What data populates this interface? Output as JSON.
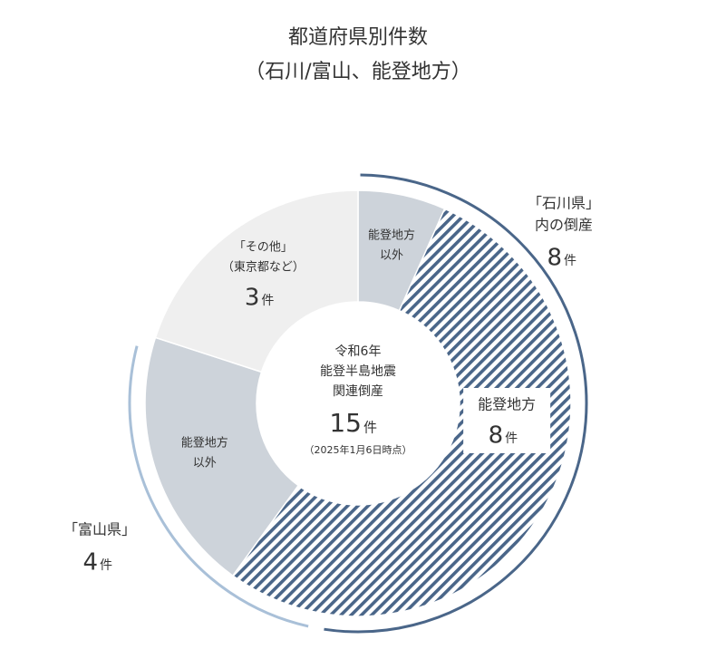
{
  "chart_data": {
    "type": "donut",
    "title": "都道府県別件数",
    "subtitle": "（石川/富山、能登地方）",
    "center_text": [
      "令和6年",
      "能登半島地震",
      "関連倒産"
    ],
    "total": 15,
    "unit": "件",
    "note": "（2025年1月6日時点）",
    "categories": [
      [
        "能登地方",
        "以外"
      ],
      [
        "能登地方"
      ],
      [
        "能登地方",
        "以外"
      ],
      [
        "「その他」",
        "（東京都など）"
      ]
    ],
    "values": [
      1,
      8,
      3,
      3
    ],
    "printed_values": [
      false,
      true,
      false,
      true
    ],
    "colors": [
      "#cdd3da",
      "#4a6689",
      "#cdd3da",
      "#efefef"
    ],
    "hatched": [
      false,
      true,
      false,
      false
    ],
    "groups": [
      {
        "name": [
          "「石川県」",
          "内の倒産"
        ],
        "value": 8,
        "color": "#4a6689",
        "from_segment": 0
      },
      {
        "name": [
          "「富山県」"
        ],
        "value": 4,
        "color": "#a9c0d8",
        "to_segment": 2
      }
    ]
  }
}
